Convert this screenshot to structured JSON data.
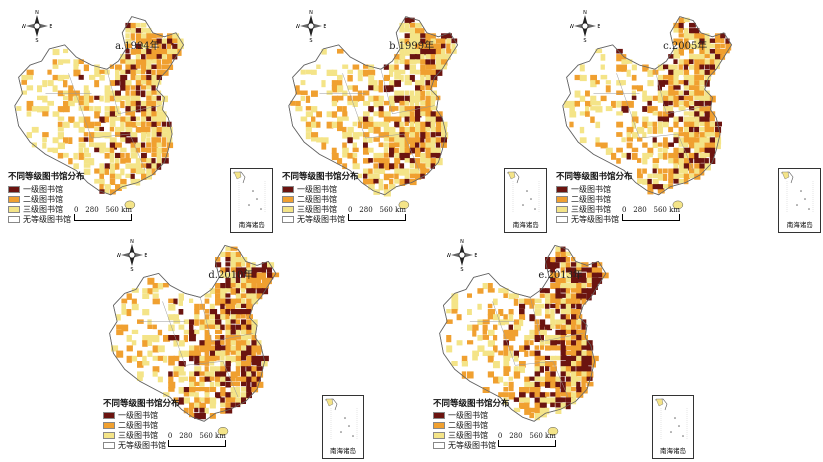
{
  "legend": {
    "title": "不同等级图书馆分布",
    "items": [
      {
        "label": "一级图书馆",
        "color": "#6b1410"
      },
      {
        "label": "二级图书馆",
        "color": "#f0a030"
      },
      {
        "label": "三级图书馆",
        "color": "#f4e488"
      },
      {
        "label": "无等级图书馆",
        "color": "#ffffff"
      }
    ]
  },
  "scale": {
    "labels": [
      "0",
      "280",
      "560 km"
    ]
  },
  "inset_label": "南海诸岛",
  "compass": {
    "n": "N",
    "s": "S",
    "e": "E",
    "w": "W"
  },
  "panels": [
    {
      "title": "a.1994年",
      "density": [
        0.12,
        0.3,
        0.42
      ]
    },
    {
      "title": "b.1999年",
      "density": [
        0.16,
        0.3,
        0.36
      ]
    },
    {
      "title": "c.2005年",
      "density": [
        0.2,
        0.3,
        0.34
      ]
    },
    {
      "title": "d.2010年",
      "density": [
        0.26,
        0.3,
        0.3
      ]
    },
    {
      "title": "e.2013年",
      "density": [
        0.34,
        0.32,
        0.22
      ]
    }
  ]
}
